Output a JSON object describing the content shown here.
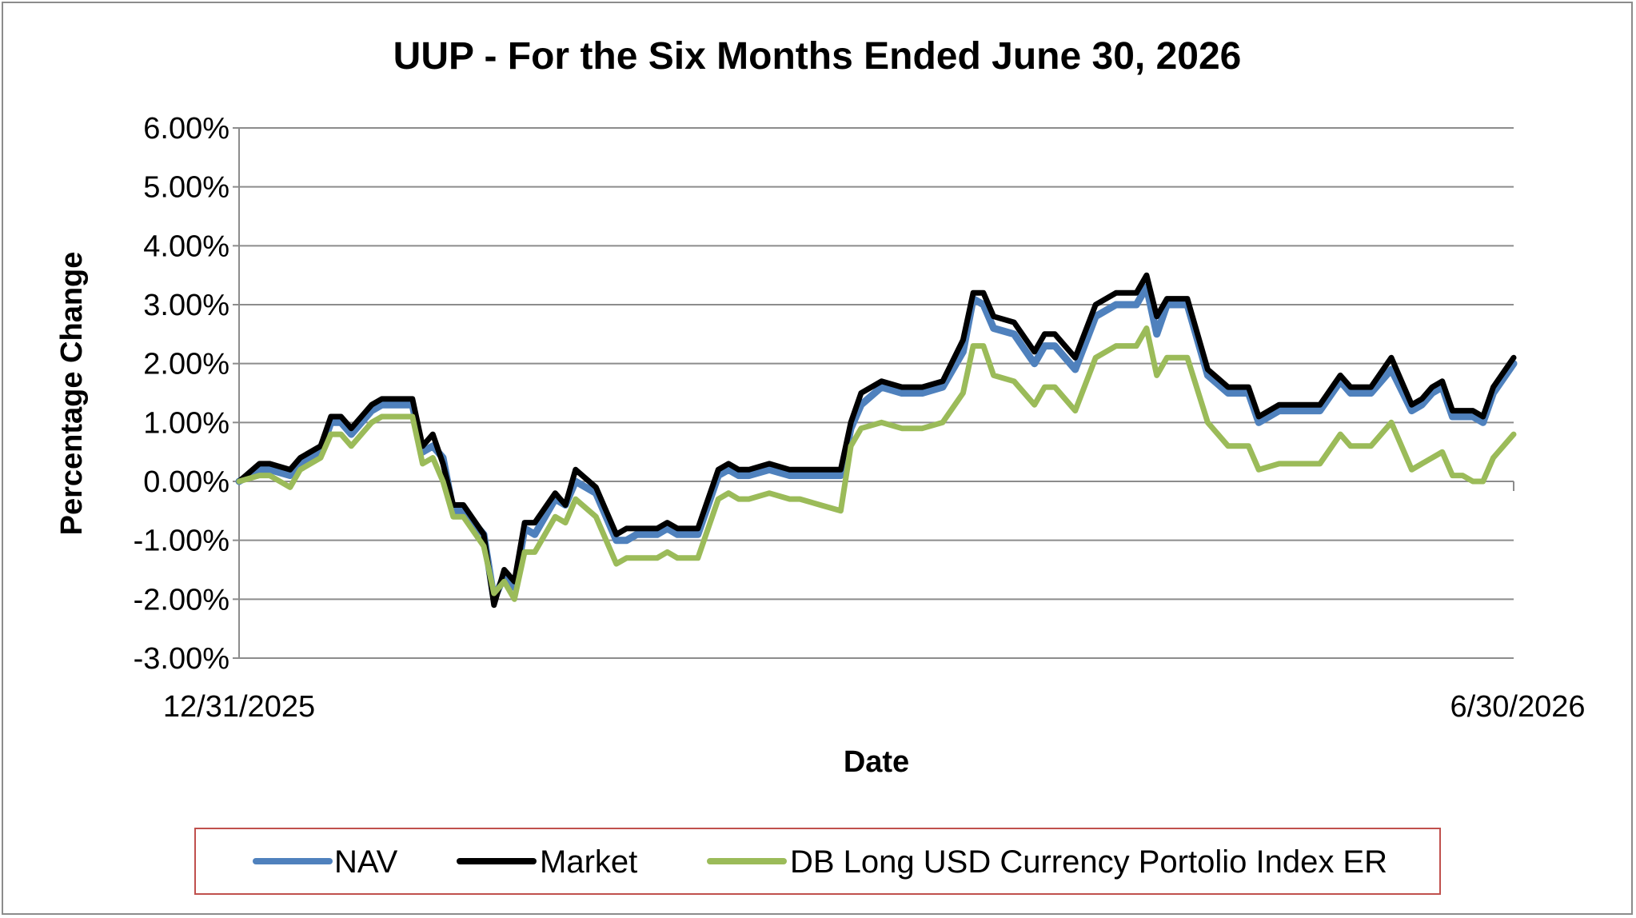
{
  "chart_data": {
    "type": "line",
    "title": "UUP - For the Six Months Ended June 30, 2026",
    "xlabel": "Date",
    "ylabel": "Percentage Change",
    "x_tick_labels": [
      "12/31/2025",
      "6/30/2026"
    ],
    "y_ticks": [
      -3,
      -2,
      -1,
      0,
      1,
      2,
      3,
      4,
      5,
      6
    ],
    "y_tick_labels": [
      "-3.00%",
      "-2.00%",
      "-1.00%",
      "0.00%",
      "1.00%",
      "2.00%",
      "3.00%",
      "4.00%",
      "5.00%",
      "6.00%"
    ],
    "ylim": [
      -3,
      6
    ],
    "x_index_range": [
      0,
      125
    ],
    "grid": true,
    "legend_position": "bottom",
    "series": [
      {
        "name": "NAV",
        "color": "#4f81bd",
        "x": [
          0,
          2,
          3,
          5,
          6,
          8,
          9,
          10,
          11,
          12,
          13,
          14,
          15,
          16,
          17,
          18,
          19,
          20,
          21,
          22,
          24,
          25,
          26,
          27,
          28,
          29,
          31,
          32,
          33,
          35,
          37,
          38,
          39,
          40,
          41,
          42,
          43,
          45,
          47,
          48,
          49,
          50,
          52,
          54,
          55,
          57,
          59,
          60,
          61,
          63,
          65,
          67,
          69,
          71,
          72,
          73,
          74,
          76,
          78,
          79,
          80,
          82,
          84,
          86,
          88,
          89,
          90,
          91,
          92,
          93,
          95,
          97,
          99,
          100,
          102,
          104,
          106,
          108,
          109,
          110,
          111,
          113,
          115,
          116,
          117,
          118,
          119,
          120,
          121,
          122,
          123,
          125
        ],
        "values": [
          0,
          0.2,
          0.2,
          0.1,
          0.3,
          0.5,
          1.0,
          1.0,
          0.8,
          1.0,
          1.2,
          1.3,
          1.3,
          1.3,
          1.3,
          0.5,
          0.6,
          0.4,
          -0.5,
          -0.5,
          -0.9,
          -2.0,
          -1.6,
          -1.8,
          -0.8,
          -0.9,
          -0.3,
          -0.4,
          0.0,
          -0.2,
          -1.0,
          -1.0,
          -0.9,
          -0.9,
          -0.9,
          -0.8,
          -0.9,
          -0.9,
          0.1,
          0.2,
          0.1,
          0.1,
          0.2,
          0.1,
          0.1,
          0.1,
          0.1,
          0.9,
          1.3,
          1.6,
          1.5,
          1.5,
          1.6,
          2.2,
          3.1,
          3.0,
          2.6,
          2.5,
          2.0,
          2.3,
          2.3,
          1.9,
          2.8,
          3.0,
          3.0,
          3.3,
          2.5,
          3.0,
          3.0,
          3.0,
          1.8,
          1.5,
          1.5,
          1.0,
          1.2,
          1.2,
          1.2,
          1.7,
          1.5,
          1.5,
          1.5,
          1.9,
          1.2,
          1.3,
          1.5,
          1.6,
          1.1,
          1.1,
          1.1,
          1.0,
          1.5,
          2.0
        ]
      },
      {
        "name": "Market",
        "color": "#000000",
        "x": [
          0,
          2,
          3,
          5,
          6,
          8,
          9,
          10,
          11,
          12,
          13,
          14,
          15,
          16,
          17,
          18,
          19,
          20,
          21,
          22,
          24,
          25,
          26,
          27,
          28,
          29,
          31,
          32,
          33,
          35,
          37,
          38,
          39,
          40,
          41,
          42,
          43,
          45,
          47,
          48,
          49,
          50,
          52,
          54,
          55,
          57,
          59,
          60,
          61,
          63,
          65,
          67,
          69,
          71,
          72,
          73,
          74,
          76,
          78,
          79,
          80,
          82,
          84,
          86,
          88,
          89,
          90,
          91,
          92,
          93,
          95,
          97,
          99,
          100,
          102,
          104,
          106,
          108,
          109,
          110,
          111,
          113,
          115,
          116,
          117,
          118,
          119,
          120,
          121,
          122,
          123,
          125
        ],
        "values": [
          0,
          0.3,
          0.3,
          0.2,
          0.4,
          0.6,
          1.1,
          1.1,
          0.9,
          1.1,
          1.3,
          1.4,
          1.4,
          1.4,
          1.4,
          0.6,
          0.8,
          0.3,
          -0.4,
          -0.4,
          -0.9,
          -2.1,
          -1.5,
          -1.7,
          -0.7,
          -0.7,
          -0.2,
          -0.4,
          0.2,
          -0.1,
          -0.9,
          -0.8,
          -0.8,
          -0.8,
          -0.8,
          -0.7,
          -0.8,
          -0.8,
          0.2,
          0.3,
          0.2,
          0.2,
          0.3,
          0.2,
          0.2,
          0.2,
          0.2,
          1.0,
          1.5,
          1.7,
          1.6,
          1.6,
          1.7,
          2.4,
          3.2,
          3.2,
          2.8,
          2.7,
          2.2,
          2.5,
          2.5,
          2.1,
          3.0,
          3.2,
          3.2,
          3.5,
          2.8,
          3.1,
          3.1,
          3.1,
          1.9,
          1.6,
          1.6,
          1.1,
          1.3,
          1.3,
          1.3,
          1.8,
          1.6,
          1.6,
          1.6,
          2.1,
          1.3,
          1.4,
          1.6,
          1.7,
          1.2,
          1.2,
          1.2,
          1.1,
          1.6,
          2.1
        ]
      },
      {
        "name": "DB Long USD Currency Portolio Index ER",
        "color": "#9bbb59",
        "x": [
          0,
          2,
          3,
          5,
          6,
          8,
          9,
          10,
          11,
          12,
          13,
          14,
          15,
          16,
          17,
          18,
          19,
          20,
          21,
          22,
          24,
          25,
          26,
          27,
          28,
          29,
          31,
          32,
          33,
          35,
          37,
          38,
          39,
          40,
          41,
          42,
          43,
          45,
          47,
          48,
          49,
          50,
          52,
          54,
          55,
          57,
          59,
          60,
          61,
          63,
          65,
          67,
          69,
          71,
          72,
          73,
          74,
          76,
          78,
          79,
          80,
          82,
          84,
          86,
          88,
          89,
          90,
          91,
          92,
          93,
          95,
          97,
          99,
          100,
          102,
          104,
          106,
          108,
          109,
          110,
          111,
          113,
          115,
          116,
          117,
          118,
          119,
          120,
          121,
          122,
          123,
          125
        ],
        "values": [
          0,
          0.1,
          0.1,
          -0.1,
          0.2,
          0.4,
          0.8,
          0.8,
          0.6,
          0.8,
          1.0,
          1.1,
          1.1,
          1.1,
          1.1,
          0.3,
          0.4,
          0.0,
          -0.6,
          -0.6,
          -1.1,
          -1.9,
          -1.7,
          -2.0,
          -1.2,
          -1.2,
          -0.6,
          -0.7,
          -0.3,
          -0.6,
          -1.4,
          -1.3,
          -1.3,
          -1.3,
          -1.3,
          -1.2,
          -1.3,
          -1.3,
          -0.3,
          -0.2,
          -0.3,
          -0.3,
          -0.2,
          -0.3,
          -0.3,
          -0.4,
          -0.5,
          0.6,
          0.9,
          1.0,
          0.9,
          0.9,
          1.0,
          1.5,
          2.3,
          2.3,
          1.8,
          1.7,
          1.3,
          1.6,
          1.6,
          1.2,
          2.1,
          2.3,
          2.3,
          2.6,
          1.8,
          2.1,
          2.1,
          2.1,
          1.0,
          0.6,
          0.6,
          0.2,
          0.3,
          0.3,
          0.3,
          0.8,
          0.6,
          0.6,
          0.6,
          1.0,
          0.2,
          0.3,
          0.4,
          0.5,
          0.1,
          0.1,
          0.0,
          0.0,
          0.4,
          0.8
        ]
      }
    ]
  }
}
